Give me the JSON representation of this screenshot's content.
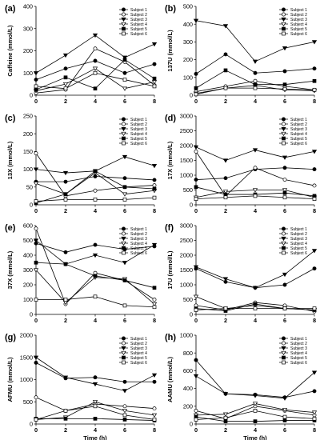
{
  "chart_data": [
    {
      "panel": "(a)",
      "type": "line",
      "ylabel": "Caffeine (mmol/L)",
      "xlabel": "",
      "x": [
        0,
        2,
        4,
        6,
        8
      ],
      "xticks": [
        "0",
        "2",
        "4",
        "6",
        "8"
      ],
      "ylim": [
        0,
        400
      ],
      "yticks": [
        "0",
        "100",
        "200",
        "300",
        "400"
      ],
      "series": [
        {
          "name": "Subject 1",
          "values": [
            70,
            120,
            155,
            100,
            140
          ]
        },
        {
          "name": "Subject 2",
          "values": [
            10,
            25,
            210,
            150,
            45
          ]
        },
        {
          "name": "Subject 3",
          "values": [
            100,
            180,
            270,
            170,
            230
          ]
        },
        {
          "name": "Subject 4",
          "values": [
            20,
            50,
            120,
            30,
            60
          ]
        },
        {
          "name": "Subject 5",
          "values": [
            25,
            80,
            30,
            160,
            75
          ]
        },
        {
          "name": "Subject 6",
          "values": [
            40,
            30,
            100,
            70,
            40
          ]
        }
      ]
    },
    {
      "panel": "(b)",
      "type": "line",
      "ylabel": "137U (mmol/L)",
      "xlabel": "",
      "x": [
        0,
        2,
        4,
        6,
        8
      ],
      "xticks": [
        "0",
        "2",
        "4",
        "6",
        "8"
      ],
      "ylim": [
        0,
        500
      ],
      "yticks": [
        "0",
        "100",
        "200",
        "300",
        "400",
        "500"
      ],
      "series": [
        {
          "name": "Subject 1",
          "values": [
            120,
            230,
            125,
            135,
            150
          ]
        },
        {
          "name": "Subject 2",
          "values": [
            20,
            50,
            80,
            50,
            30
          ]
        },
        {
          "name": "Subject 3",
          "values": [
            420,
            390,
            190,
            265,
            300
          ]
        },
        {
          "name": "Subject 4",
          "values": [
            10,
            40,
            55,
            30,
            25
          ]
        },
        {
          "name": "Subject 5",
          "values": [
            40,
            140,
            60,
            60,
            80
          ]
        },
        {
          "name": "Subject 6",
          "values": [
            5,
            40,
            40,
            35,
            30
          ]
        }
      ]
    },
    {
      "panel": "(c)",
      "type": "line",
      "ylabel": "13X (mmol/L)",
      "xlabel": "",
      "x": [
        0,
        2,
        4,
        6,
        8
      ],
      "xticks": [
        "0",
        "2",
        "4",
        "6",
        "8"
      ],
      "ylim": [
        0,
        250
      ],
      "yticks": [
        "0",
        "50",
        "100",
        "150",
        "200",
        "250"
      ],
      "series": [
        {
          "name": "Subject 1",
          "values": [
            65,
            65,
            80,
            75,
            70
          ]
        },
        {
          "name": "Subject 2",
          "values": [
            145,
            25,
            40,
            50,
            55
          ]
        },
        {
          "name": "Subject 3",
          "values": [
            100,
            90,
            95,
            135,
            110
          ]
        },
        {
          "name": "Subject 4",
          "values": [
            60,
            30,
            90,
            30,
            40
          ]
        },
        {
          "name": "Subject 5",
          "values": [
            5,
            30,
            95,
            50,
            45
          ]
        },
        {
          "name": "Subject 6",
          "values": [
            10,
            15,
            15,
            15,
            20
          ]
        }
      ]
    },
    {
      "panel": "(d)",
      "type": "line",
      "ylabel": "17X (mmol/L)",
      "xlabel": "",
      "x": [
        0,
        2,
        4,
        6,
        8
      ],
      "xticks": [
        "0",
        "2",
        "4",
        "6",
        "8"
      ],
      "ylim": [
        0,
        3000
      ],
      "yticks": [
        "0",
        "500",
        "1000",
        "1500",
        "2000",
        "2500",
        "3000"
      ],
      "series": [
        {
          "name": "Subject 1",
          "values": [
            850,
            900,
            1200,
            1250,
            1200
          ]
        },
        {
          "name": "Subject 2",
          "values": [
            1800,
            300,
            1250,
            850,
            650
          ]
        },
        {
          "name": "Subject 3",
          "values": [
            1950,
            1500,
            1850,
            1600,
            1800
          ]
        },
        {
          "name": "Subject 4",
          "values": [
            250,
            450,
            500,
            500,
            250
          ]
        },
        {
          "name": "Subject 5",
          "values": [
            600,
            350,
            350,
            400,
            300
          ]
        },
        {
          "name": "Subject 6",
          "values": [
            200,
            250,
            300,
            250,
            200
          ]
        }
      ]
    },
    {
      "panel": "(e)",
      "type": "line",
      "ylabel": "37X (mmol/L)",
      "xlabel": "",
      "x": [
        0,
        2,
        4,
        6,
        8
      ],
      "xticks": [
        "0",
        "2",
        "4",
        "6",
        "8"
      ],
      "ylim": [
        0,
        600
      ],
      "yticks": [
        "0",
        "100",
        "200",
        "300",
        "400",
        "500",
        "600"
      ],
      "series": [
        {
          "name": "Subject 1",
          "values": [
            480,
            420,
            470,
            440,
            460
          ]
        },
        {
          "name": "Subject 2",
          "values": [
            580,
            70,
            280,
            230,
            100
          ]
        },
        {
          "name": "Subject 3",
          "values": [
            500,
            340,
            400,
            350,
            470
          ]
        },
        {
          "name": "Subject 4",
          "values": [
            300,
            80,
            250,
            240,
            70
          ]
        },
        {
          "name": "Subject 5",
          "values": [
            350,
            340,
            260,
            230,
            180
          ]
        },
        {
          "name": "Subject 6",
          "values": [
            100,
            100,
            120,
            60,
            50
          ]
        }
      ]
    },
    {
      "panel": "(f)",
      "type": "line",
      "ylabel": "17U (mmol/L)",
      "xlabel": "",
      "x": [
        0,
        2,
        4,
        6,
        8
      ],
      "xticks": [
        "0",
        "2",
        "4",
        "6",
        "8"
      ],
      "ylim": [
        0,
        3000
      ],
      "yticks": [
        "0",
        "500",
        "1000",
        "1500",
        "2000",
        "2500",
        "3000"
      ],
      "series": [
        {
          "name": "Subject 1",
          "values": [
            1550,
            1100,
            900,
            1000,
            1550
          ]
        },
        {
          "name": "Subject 2",
          "values": [
            300,
            150,
            400,
            300,
            100
          ]
        },
        {
          "name": "Subject 3",
          "values": [
            1600,
            1200,
            900,
            1350,
            2150
          ]
        },
        {
          "name": "Subject 4",
          "values": [
            600,
            200,
            300,
            200,
            150
          ]
        },
        {
          "name": "Subject 5",
          "values": [
            200,
            120,
            350,
            200,
            150
          ]
        },
        {
          "name": "Subject 6",
          "values": [
            150,
            200,
            200,
            200,
            200
          ]
        }
      ]
    },
    {
      "panel": "(g)",
      "type": "line",
      "ylabel": "AFMU (mmol/L)",
      "xlabel": "Time (h)",
      "x": [
        0,
        2,
        4,
        6,
        8
      ],
      "xticks": [
        "0",
        "2",
        "4",
        "6",
        "8"
      ],
      "ylim": [
        0,
        2000
      ],
      "yticks": [
        "0",
        "500",
        "1000",
        "1500",
        "2000"
      ],
      "series": [
        {
          "name": "Subject 1",
          "values": [
            1380,
            1030,
            1050,
            950,
            950
          ]
        },
        {
          "name": "Subject 2",
          "values": [
            600,
            300,
            450,
            400,
            350
          ]
        },
        {
          "name": "Subject 3",
          "values": [
            1500,
            1050,
            900,
            750,
            1100
          ]
        },
        {
          "name": "Subject 4",
          "values": [
            100,
            150,
            500,
            300,
            200
          ]
        },
        {
          "name": "Subject 5",
          "values": [
            120,
            120,
            120,
            100,
            80
          ]
        },
        {
          "name": "Subject 6",
          "values": [
            100,
            300,
            400,
            200,
            100
          ]
        }
      ]
    },
    {
      "panel": "(h)",
      "type": "line",
      "ylabel": "AAMU (mmol/L)",
      "xlabel": "Time (h)",
      "x": [
        0,
        2,
        4,
        6,
        8
      ],
      "xticks": [
        "0",
        "2",
        "4",
        "6",
        "8"
      ],
      "ylim": [
        0,
        1000
      ],
      "yticks": [
        "0",
        "200",
        "400",
        "600",
        "800",
        "1000"
      ],
      "series": [
        {
          "name": "Subject 1",
          "values": [
            720,
            340,
            330,
            300,
            370
          ]
        },
        {
          "name": "Subject 2",
          "values": [
            150,
            60,
            200,
            150,
            100
          ]
        },
        {
          "name": "Subject 3",
          "values": [
            540,
            340,
            320,
            290,
            580
          ]
        },
        {
          "name": "Subject 4",
          "values": [
            100,
            110,
            230,
            160,
            130
          ]
        },
        {
          "name": "Subject 5",
          "values": [
            80,
            30,
            30,
            40,
            40
          ]
        },
        {
          "name": "Subject 6",
          "values": [
            50,
            70,
            150,
            80,
            60
          ]
        }
      ]
    }
  ]
}
